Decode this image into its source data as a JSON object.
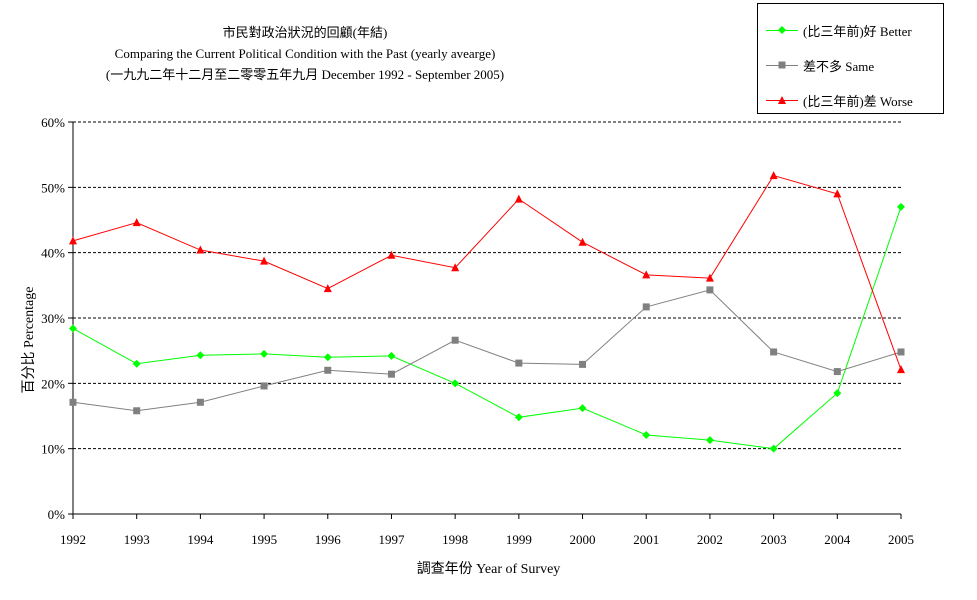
{
  "title_lines": [
    "市民對政治狀況的回顧(年結)",
    "Comparing the Current Political Condition with the Past  (yearly avearge)",
    "(一九九二年十二月至二零零五年九月 December 1992 - September 2005)"
  ],
  "legend": [
    {
      "label": "(比三年前)好 Better",
      "color": "#00ff00",
      "marker": "diamond"
    },
    {
      "label": "差不多 Same",
      "color": "#808080",
      "marker": "square"
    },
    {
      "label": "(比三年前)差 Worse",
      "color": "#ff0000",
      "marker": "triangle"
    }
  ],
  "colors": {
    "better": "#00ff00",
    "same": "#808080",
    "worse": "#ff0000"
  },
  "chart_data": {
    "type": "line",
    "x": [
      "1992",
      "1993",
      "1994",
      "1995",
      "1996",
      "1997",
      "1998",
      "1999",
      "2000",
      "2001",
      "2002",
      "2003",
      "2004",
      "2005"
    ],
    "xlabel": "調查年份 Year of Survey",
    "ylabel": "百分比 Percentage",
    "ylim": [
      0,
      60
    ],
    "yticks": [
      0,
      10,
      20,
      30,
      40,
      50,
      60
    ],
    "ytick_labels": [
      "0%",
      "10%",
      "20%",
      "30%",
      "40%",
      "50%",
      "60%"
    ],
    "grid": true,
    "legend_position": "top-right",
    "series": [
      {
        "name": "(比三年前)好 Better",
        "color": "#00ff00",
        "marker": "diamond",
        "values": [
          28.4,
          23.0,
          24.3,
          24.5,
          24.0,
          24.2,
          20.0,
          14.8,
          16.2,
          12.1,
          11.3,
          10.0,
          18.5,
          47.0
        ]
      },
      {
        "name": "差不多 Same",
        "color": "#808080",
        "marker": "square",
        "values": [
          17.1,
          15.8,
          17.1,
          19.6,
          22.0,
          21.4,
          26.6,
          23.1,
          22.9,
          31.7,
          34.3,
          24.8,
          21.8,
          24.8
        ]
      },
      {
        "name": "(比三年前)差 Worse",
        "color": "#ff0000",
        "marker": "triangle",
        "values": [
          41.8,
          44.6,
          40.4,
          38.7,
          34.5,
          39.6,
          37.7,
          48.2,
          41.6,
          36.6,
          36.1,
          51.8,
          49.0,
          22.1
        ]
      }
    ]
  }
}
